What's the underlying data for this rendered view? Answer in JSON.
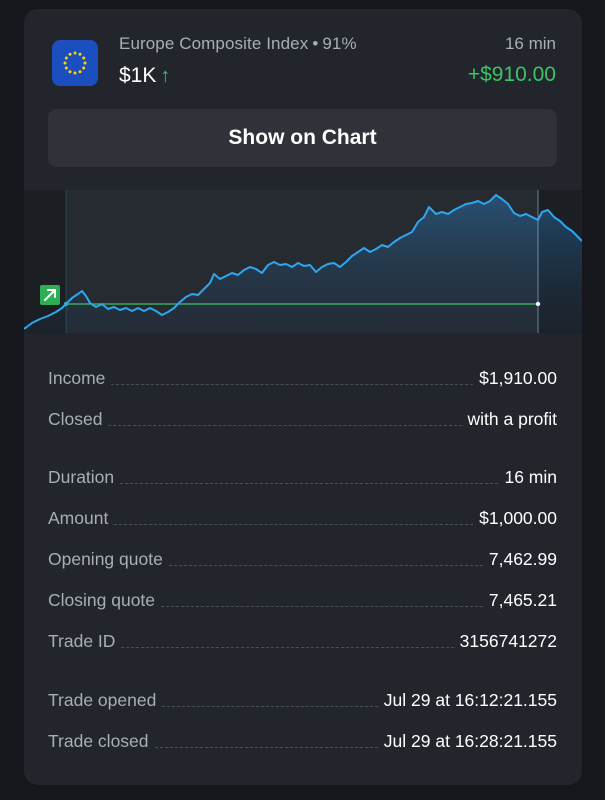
{
  "header": {
    "asset_name": "Europe Composite Index",
    "payout": "91%",
    "duration": "16 min",
    "amount": "$1K",
    "profit": "+$910.00",
    "flag_icon": "eu-flag-icon",
    "direction_icon": "arrow-up-icon"
  },
  "show_button": {
    "label": "Show on Chart"
  },
  "chart": {
    "trade_marker_icon": "arrow-up-right-icon",
    "colors": {
      "line": "#2ea6f0",
      "entry_line": "#3cc464"
    }
  },
  "details": {
    "income": {
      "label": "Income",
      "value": "$1,910.00"
    },
    "closed": {
      "label": "Closed",
      "value": "with a profit"
    },
    "duration": {
      "label": "Duration",
      "value": "16 min"
    },
    "amount": {
      "label": "Amount",
      "value": "$1,000.00"
    },
    "opening_quote": {
      "label": "Opening quote",
      "value": "7,462.99"
    },
    "closing_quote": {
      "label": "Closing quote",
      "value": "7,465.21"
    },
    "trade_id": {
      "label": "Trade ID",
      "value": "3156741272"
    },
    "trade_opened": {
      "label": "Trade opened",
      "value": "Jul 29 at 16:12:21.155"
    },
    "trade_closed": {
      "label": "Trade closed",
      "value": "Jul 29 at 16:28:21.155"
    }
  }
}
